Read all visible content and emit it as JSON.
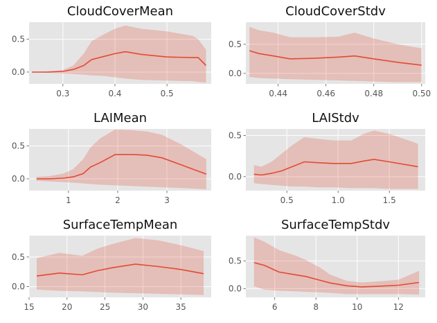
{
  "chart_data": [
    {
      "type": "line",
      "title": "CloudCoverMean",
      "xlabel": "",
      "ylabel": "",
      "xlim": [
        0.235,
        0.585
      ],
      "ylim": [
        -0.18,
        0.76
      ],
      "xticks": [
        0.3,
        0.4,
        0.5
      ],
      "yticks": [
        0.0,
        0.5
      ],
      "grid": true,
      "series": [
        {
          "x": [
            0.24,
            0.27,
            0.3,
            0.32,
            0.34,
            0.355,
            0.38,
            0.4,
            0.42,
            0.45,
            0.5,
            0.55,
            0.56,
            0.575
          ],
          "mean": [
            0.0,
            0.0,
            0.01,
            0.04,
            0.1,
            0.19,
            0.24,
            0.28,
            0.31,
            0.27,
            0.23,
            0.22,
            0.22,
            0.1
          ],
          "upper": [
            0.0,
            0.01,
            0.03,
            0.1,
            0.28,
            0.47,
            0.58,
            0.66,
            0.71,
            0.66,
            0.62,
            0.55,
            0.5,
            0.34
          ],
          "lower": [
            0.0,
            -0.01,
            -0.02,
            -0.03,
            -0.04,
            -0.05,
            -0.06,
            -0.08,
            -0.1,
            -0.12,
            -0.13,
            -0.14,
            -0.15,
            -0.16
          ]
        }
      ]
    },
    {
      "type": "line",
      "title": "CloudCoverStdv",
      "xlabel": "",
      "ylabel": "",
      "xlim": [
        0.4265,
        0.5015
      ],
      "ylim": [
        -0.18,
        0.88
      ],
      "xticks": [
        0.44,
        0.46,
        0.48,
        0.5
      ],
      "yticks": [
        0.0,
        0.5
      ],
      "grid": true,
      "series": [
        {
          "x": [
            0.428,
            0.432,
            0.438,
            0.445,
            0.455,
            0.465,
            0.472,
            0.48,
            0.49,
            0.5
          ],
          "mean": [
            0.39,
            0.34,
            0.3,
            0.25,
            0.26,
            0.28,
            0.3,
            0.25,
            0.19,
            0.14
          ],
          "upper": [
            0.8,
            0.74,
            0.7,
            0.62,
            0.62,
            0.63,
            0.7,
            0.6,
            0.5,
            0.43
          ],
          "lower": [
            -0.06,
            -0.08,
            -0.09,
            -0.1,
            -0.11,
            -0.12,
            -0.13,
            -0.14,
            -0.15,
            -0.15
          ]
        }
      ]
    },
    {
      "type": "line",
      "title": "LAIMean",
      "xlabel": "",
      "ylabel": "",
      "xlim": [
        0.2,
        3.9
      ],
      "ylim": [
        -0.18,
        0.76
      ],
      "xticks": [
        1,
        2,
        3
      ],
      "yticks": [
        0.0,
        0.5
      ],
      "grid": true,
      "series": [
        {
          "x": [
            0.35,
            0.6,
            0.9,
            1.1,
            1.3,
            1.45,
            1.65,
            1.95,
            2.3,
            2.6,
            2.9,
            3.3,
            3.8
          ],
          "mean": [
            0.0,
            0.0,
            0.01,
            0.03,
            0.08,
            0.18,
            0.25,
            0.37,
            0.37,
            0.36,
            0.32,
            0.21,
            0.07
          ],
          "upper": [
            0.03,
            0.04,
            0.08,
            0.15,
            0.3,
            0.48,
            0.62,
            0.75,
            0.74,
            0.72,
            0.67,
            0.52,
            0.3
          ],
          "lower": [
            -0.03,
            -0.04,
            -0.05,
            -0.06,
            -0.07,
            -0.08,
            -0.09,
            -0.1,
            -0.11,
            -0.12,
            -0.13,
            -0.14,
            -0.16
          ]
        }
      ]
    },
    {
      "type": "line",
      "title": "LAIStdv",
      "xlabel": "",
      "ylabel": "",
      "xlim": [
        0.1,
        1.85
      ],
      "ylim": [
        -0.17,
        0.58
      ],
      "xticks": [
        0.5,
        1.0,
        1.5
      ],
      "yticks": [
        0.0,
        0.5
      ],
      "grid": true,
      "series": [
        {
          "x": [
            0.18,
            0.25,
            0.35,
            0.45,
            0.55,
            0.67,
            0.8,
            0.95,
            1.13,
            1.25,
            1.35,
            1.5,
            1.78
          ],
          "mean": [
            0.03,
            0.02,
            0.04,
            0.07,
            0.12,
            0.18,
            0.17,
            0.16,
            0.16,
            0.19,
            0.21,
            0.18,
            0.12
          ],
          "upper": [
            0.14,
            0.12,
            0.18,
            0.28,
            0.38,
            0.48,
            0.46,
            0.44,
            0.44,
            0.52,
            0.56,
            0.52,
            0.4
          ],
          "lower": [
            -0.08,
            -0.09,
            -0.1,
            -0.11,
            -0.12,
            -0.12,
            -0.13,
            -0.13,
            -0.14,
            -0.14,
            -0.14,
            -0.15,
            -0.15
          ]
        }
      ]
    },
    {
      "type": "line",
      "title": "SurfaceTempMean",
      "xlabel": "",
      "ylabel": "",
      "xlim": [
        15,
        39
      ],
      "ylim": [
        -0.18,
        0.86
      ],
      "xticks": [
        15,
        20,
        25,
        30,
        35
      ],
      "yticks": [
        0.0,
        0.5
      ],
      "grid": true,
      "series": [
        {
          "x": [
            16,
            19,
            22,
            24,
            26,
            29,
            32,
            35,
            38
          ],
          "mean": [
            0.18,
            0.23,
            0.2,
            0.27,
            0.32,
            0.38,
            0.34,
            0.29,
            0.22
          ],
          "upper": [
            0.48,
            0.57,
            0.52,
            0.64,
            0.72,
            0.82,
            0.78,
            0.7,
            0.6
          ],
          "lower": [
            -0.05,
            -0.07,
            -0.08,
            -0.09,
            -0.1,
            -0.11,
            -0.12,
            -0.13,
            -0.14
          ]
        }
      ]
    },
    {
      "type": "line",
      "title": "SurfaceTempStdv",
      "xlabel": "",
      "ylabel": "",
      "xlim": [
        4.6,
        13.3
      ],
      "ylim": [
        -0.16,
        0.96
      ],
      "xticks": [
        6,
        8,
        10,
        12
      ],
      "yticks": [
        0.0,
        0.5
      ],
      "grid": true,
      "series": [
        {
          "x": [
            5.0,
            5.5,
            6.2,
            7.0,
            7.5,
            8.2,
            8.7,
            9.5,
            10.2,
            11.0,
            12.0,
            13.0
          ],
          "mean": [
            0.47,
            0.42,
            0.3,
            0.25,
            0.22,
            0.15,
            0.1,
            0.05,
            0.03,
            0.04,
            0.06,
            0.11
          ],
          "upper": [
            0.93,
            0.85,
            0.7,
            0.6,
            0.52,
            0.38,
            0.25,
            0.14,
            0.11,
            0.13,
            0.16,
            0.32
          ],
          "lower": [
            0.04,
            -0.02,
            -0.04,
            -0.05,
            -0.06,
            -0.07,
            -0.08,
            -0.1,
            -0.1,
            -0.1,
            -0.1,
            -0.11
          ]
        }
      ]
    }
  ]
}
